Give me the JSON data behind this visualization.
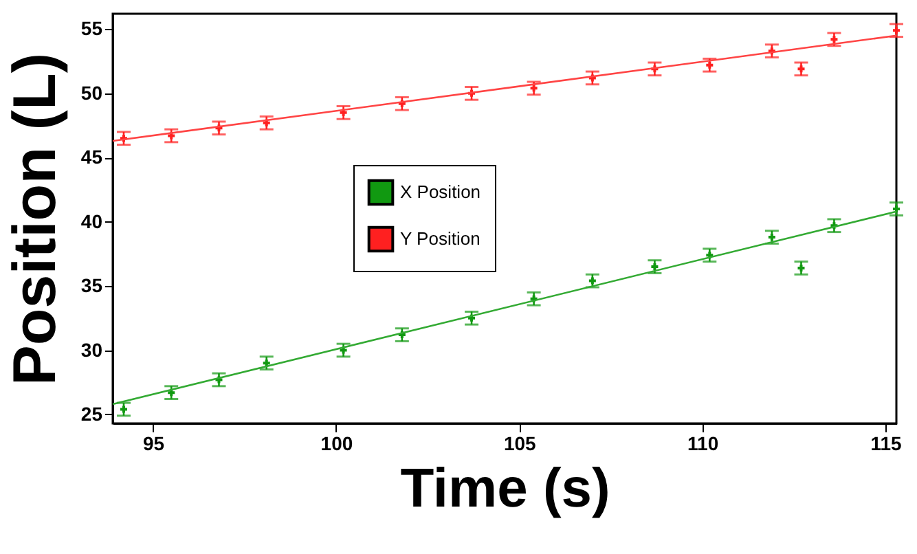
{
  "chart_data": {
    "type": "scatter",
    "xlabel": "Time (s)",
    "ylabel": "Position (L)",
    "xlim": [
      93.9,
      115.3
    ],
    "ylim": [
      24.3,
      56.2
    ],
    "xticks": [
      95,
      100,
      105,
      110,
      115
    ],
    "yticks": [
      25,
      30,
      35,
      40,
      45,
      50,
      55
    ],
    "grid": false,
    "legend": "left",
    "series": [
      {
        "name": "X Position",
        "color": "#119911",
        "marker": "cross",
        "x": [
          94.2,
          95.5,
          96.8,
          98.1,
          100.2,
          101.8,
          103.7,
          105.4,
          107.0,
          108.7,
          110.2,
          111.9,
          112.7,
          113.6,
          115.3
        ],
        "values": [
          25.4,
          26.7,
          27.7,
          29.0,
          30.0,
          31.2,
          32.5,
          34.0,
          35.4,
          36.5,
          37.4,
          38.8,
          36.4,
          39.7,
          41.0
        ],
        "errors": [
          0.5,
          0.5,
          0.5,
          0.5,
          0.5,
          0.5,
          0.5,
          0.5,
          0.5,
          0.5,
          0.5,
          0.5,
          0.5,
          0.5,
          0.5
        ]
      },
      {
        "name": "Y Position",
        "color": "#ff2020",
        "marker": "cross",
        "x": [
          94.2,
          95.5,
          96.8,
          98.1,
          100.2,
          101.8,
          103.7,
          105.4,
          107.0,
          108.7,
          110.2,
          111.9,
          112.7,
          113.6,
          115.3
        ],
        "values": [
          46.5,
          46.7,
          47.3,
          47.7,
          48.5,
          49.2,
          50.0,
          50.4,
          51.2,
          51.9,
          52.2,
          53.3,
          51.9,
          54.2,
          54.9
        ],
        "errors": [
          0.5,
          0.5,
          0.5,
          0.5,
          0.5,
          0.5,
          0.5,
          0.5,
          0.5,
          0.5,
          0.5,
          0.5,
          0.5,
          0.5,
          0.5
        ]
      },
      {
        "type": "line",
        "color": "#33aa33",
        "x": [
          93.9,
          115.3
        ],
        "values": [
          25.8,
          40.8
        ]
      },
      {
        "type": "line",
        "color": "#ff4444",
        "x": [
          93.9,
          115.3
        ],
        "values": [
          46.3,
          54.5
        ]
      }
    ]
  }
}
